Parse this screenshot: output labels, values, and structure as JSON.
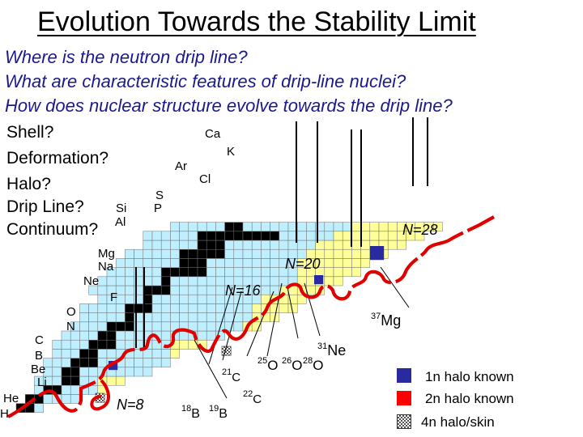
{
  "title": "Evolution Towards the Stability Limit",
  "questions": [
    "Where is the neutron drip line?",
    "What are characteristic features of drip-line nuclei?",
    "How does nuclear structure evolve towards the drip line?"
  ],
  "topics": [
    "Shell?",
    "Deformation?",
    "Halo?",
    "Drip Line?",
    "Continuum?"
  ],
  "element_labels": [
    "Ca",
    "K",
    "Ar",
    "Cl",
    "S",
    "P",
    "Si",
    "Al",
    "Mg",
    "Na",
    "Ne",
    "F",
    "O",
    "N",
    "C",
    "B",
    "Be",
    "Li",
    "He",
    "H"
  ],
  "magic_numbers": [
    "N=28",
    "N=20",
    "N=16",
    "N=8"
  ],
  "nuclei": [
    {
      "mass": "37",
      "symbol": "Mg"
    },
    {
      "mass": "31",
      "symbol": "Ne"
    },
    {
      "mass": "25",
      "symbol": "O"
    },
    {
      "mass": "26",
      "symbol": "O"
    },
    {
      "mass": "28",
      "symbol": "O"
    },
    {
      "mass": "21",
      "symbol": "C"
    },
    {
      "mass": "22",
      "symbol": "C"
    },
    {
      "mass": "18",
      "symbol": "B"
    },
    {
      "mass": "19",
      "symbol": "B"
    }
  ],
  "legend": [
    {
      "label": "1n halo known",
      "color": "#2a2aa0",
      "pattern": "solid"
    },
    {
      "label": "2n halo known",
      "color": "#ff0000",
      "pattern": "solid"
    },
    {
      "label": "4n halo/skin",
      "color": "#ffffff",
      "pattern": "checker"
    }
  ],
  "colors": {
    "stable": "#000000",
    "known": "#bfefff",
    "predicted": "#ffff99",
    "grid": "#707070",
    "dripline": "#e00000",
    "question_text": "#1a1a8c"
  }
}
